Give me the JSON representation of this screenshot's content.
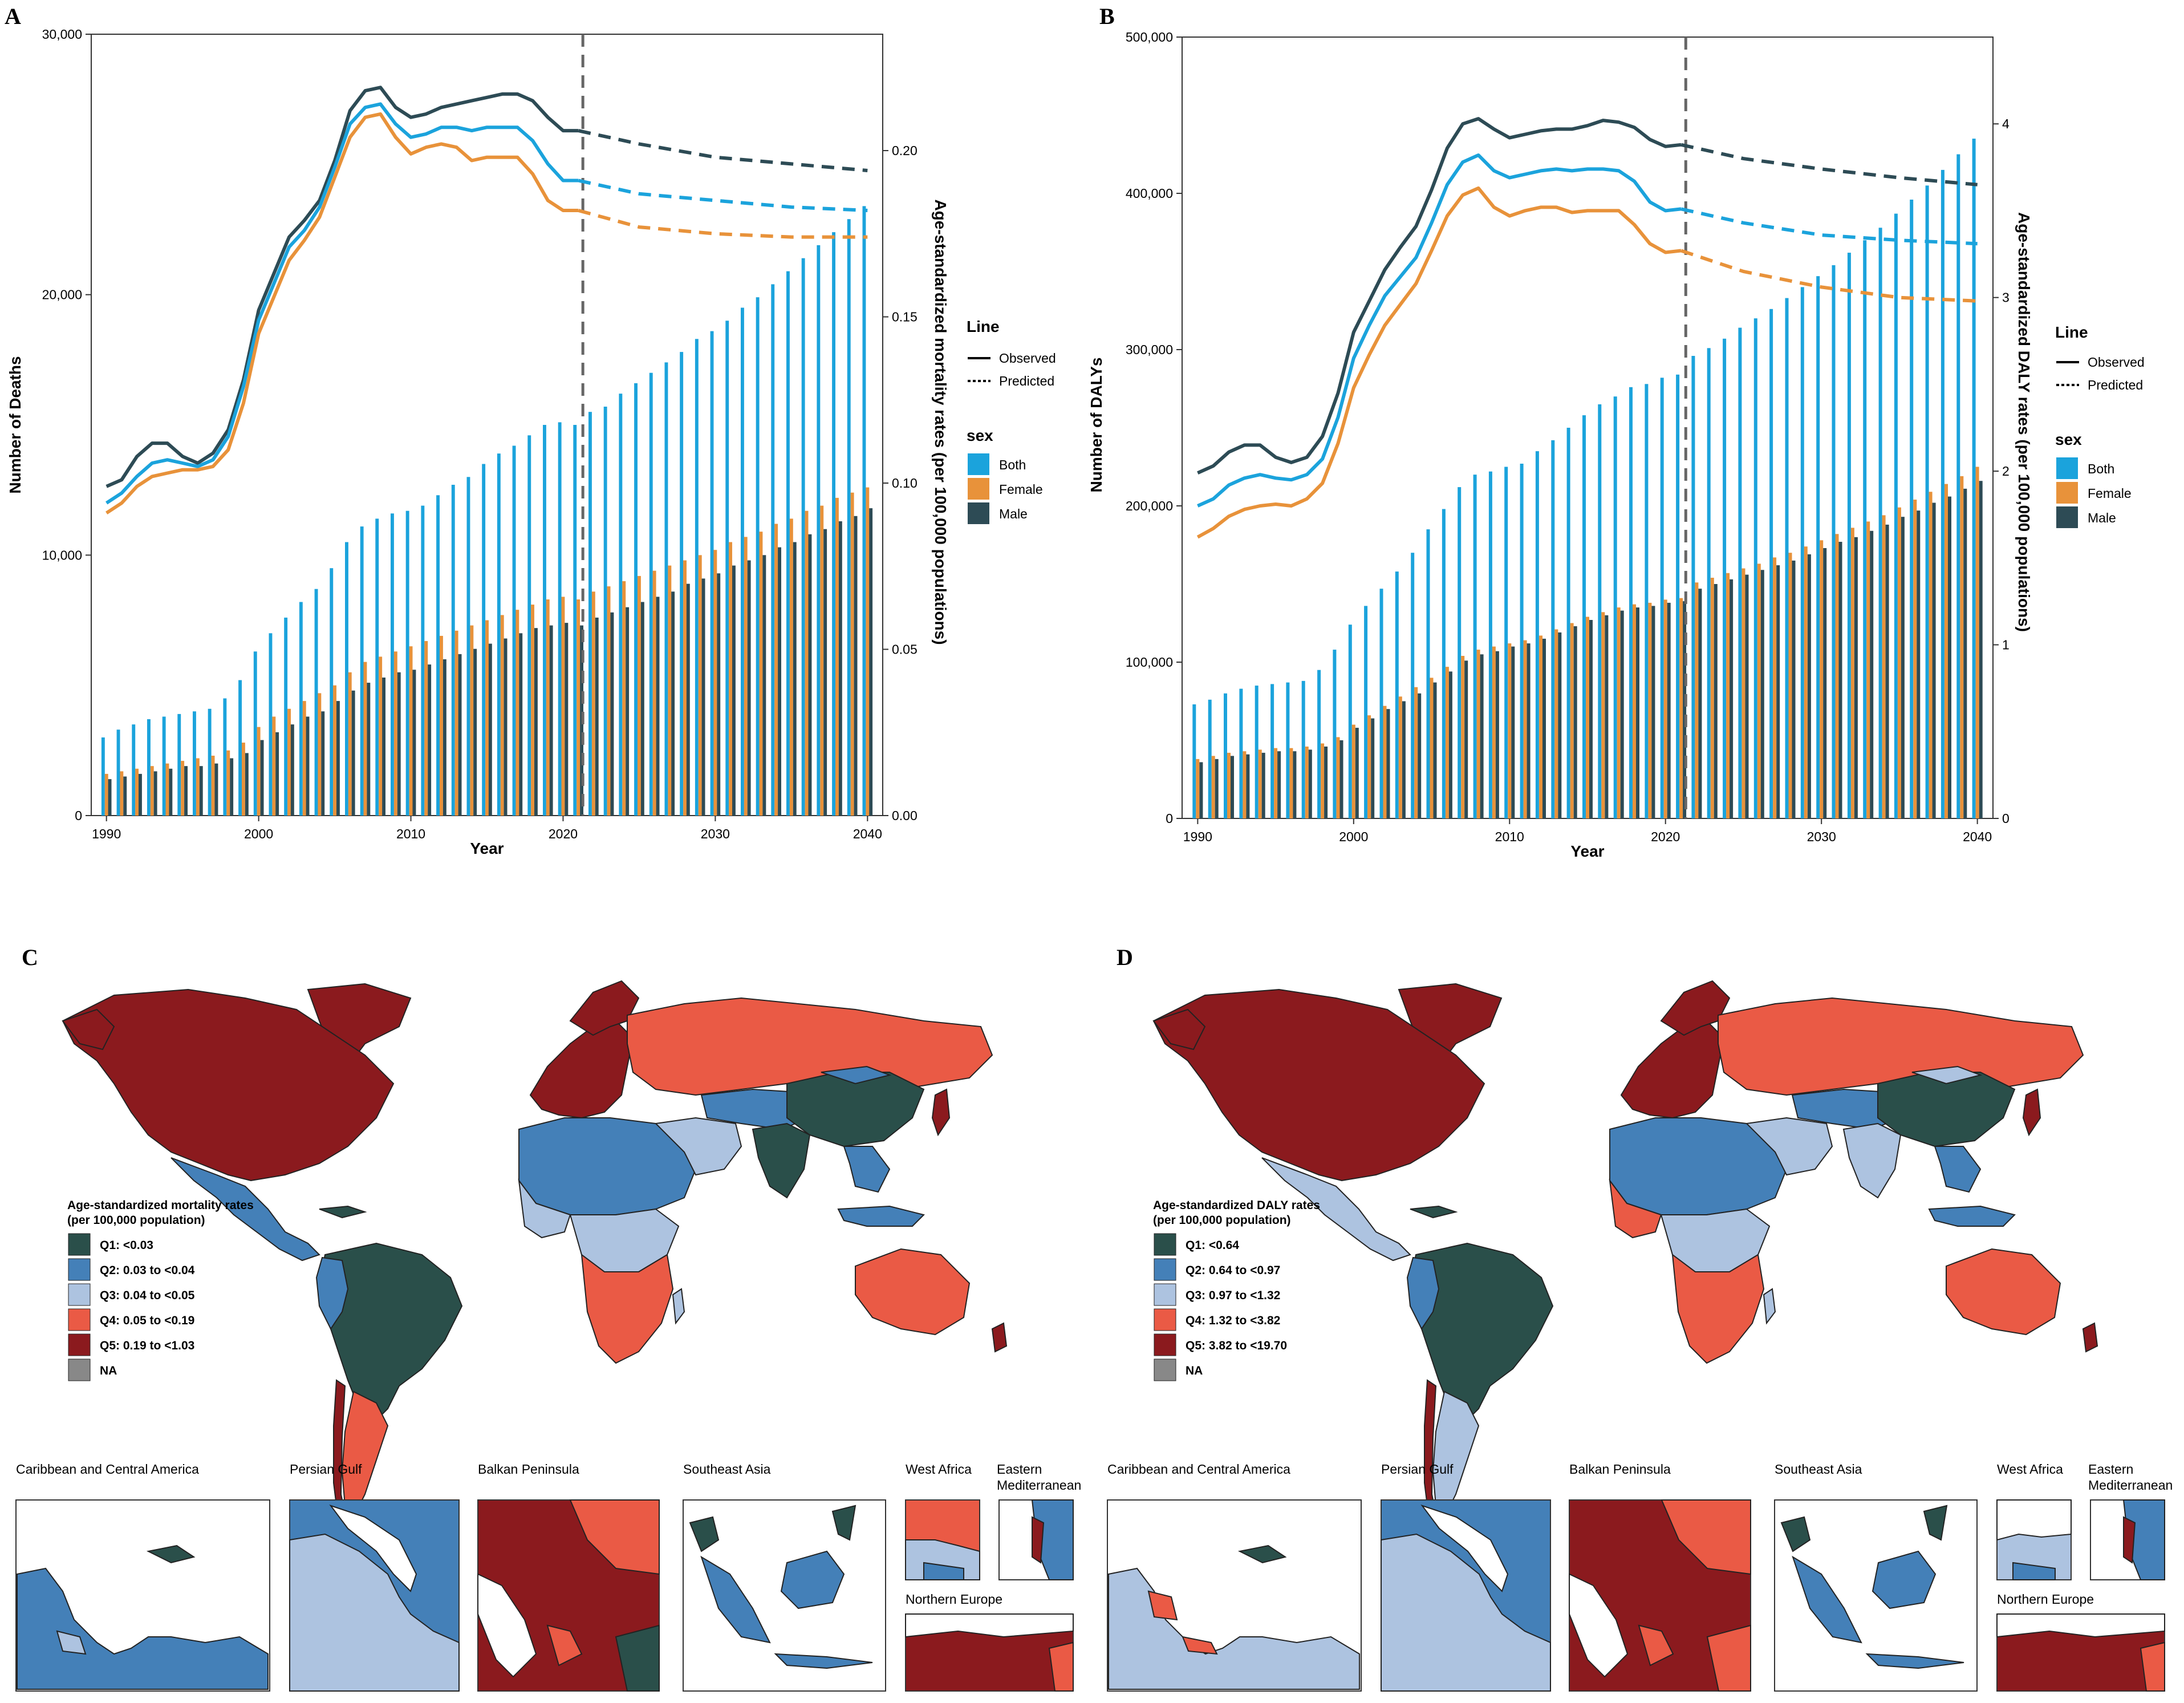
{
  "panels": {
    "A": {
      "letter": "A"
    },
    "B": {
      "letter": "B"
    },
    "C": {
      "letter": "C"
    },
    "D": {
      "letter": "D"
    }
  },
  "colors": {
    "Both": "#1ba3dc",
    "Female": "#e8923a",
    "Male": "#2d4b55",
    "Q1": "#2a4f4a",
    "Q2": "#4480b8",
    "Q3": "#adc3e0",
    "Q4": "#ea5a45",
    "Q5": "#8b1a1e",
    "NA": "#888888",
    "ocean": "#ffffff",
    "refline": "#666666"
  },
  "chart_data": [
    {
      "id": "A",
      "type": "bar+line",
      "xlabel": "Year",
      "ylabel_left": "Number of Deaths",
      "ylabel_right": "Age-standardized mortality rates (per 100,000 populations)",
      "xlim": [
        1989,
        2041
      ],
      "xticks": [
        1990,
        2000,
        2010,
        2020,
        2030,
        2040
      ],
      "ylim_left": [
        0,
        30000
      ],
      "yticks_left": [
        0,
        10000,
        20000,
        30000
      ],
      "yticks_left_labels": [
        "0",
        "10,000",
        "20,000",
        "30,000"
      ],
      "ylim_right": [
        0,
        0.235
      ],
      "yticks_right": [
        0,
        0.05,
        0.1,
        0.15,
        0.2
      ],
      "yticks_right_labels": [
        "0.00",
        "0.05",
        "0.10",
        "0.15",
        "0.20"
      ],
      "divider_year": 2021.3,
      "legend_line_title": "Line",
      "legend_line_items": [
        "Observed",
        "Predicted"
      ],
      "legend_sex_title": "sex",
      "legend_sex_items": [
        "Both",
        "Female",
        "Male"
      ],
      "bar_years": [
        1990,
        1991,
        1992,
        1993,
        1994,
        1995,
        1996,
        1997,
        1998,
        1999,
        2000,
        2001,
        2002,
        2003,
        2004,
        2005,
        2006,
        2007,
        2008,
        2009,
        2010,
        2011,
        2012,
        2013,
        2014,
        2015,
        2016,
        2017,
        2018,
        2019,
        2020,
        2021,
        2022,
        2023,
        2024,
        2025,
        2026,
        2027,
        2028,
        2029,
        2030,
        2031,
        2032,
        2033,
        2034,
        2035,
        2036,
        2037,
        2038,
        2039,
        2040
      ],
      "bars": {
        "Both": [
          3000,
          3300,
          3500,
          3700,
          3800,
          3900,
          4000,
          4100,
          4500,
          5200,
          6300,
          7000,
          7600,
          8200,
          8700,
          9500,
          10500,
          11100,
          11400,
          11600,
          11700,
          11900,
          12300,
          12700,
          13000,
          13500,
          13900,
          14200,
          14600,
          15000,
          15100,
          15000,
          15500,
          15700,
          16200,
          16600,
          17000,
          17400,
          17800,
          18300,
          18600,
          19000,
          19500,
          19900,
          20400,
          20900,
          21400,
          21900,
          22400,
          22900,
          23400
        ],
        "Female": [
          1600,
          1700,
          1800,
          1900,
          2000,
          2100,
          2200,
          2300,
          2500,
          2800,
          3400,
          3800,
          4100,
          4400,
          4700,
          5000,
          5500,
          5900,
          6100,
          6300,
          6500,
          6700,
          6900,
          7100,
          7300,
          7500,
          7700,
          7900,
          8100,
          8300,
          8400,
          8300,
          8600,
          8800,
          9000,
          9200,
          9400,
          9600,
          9800,
          10000,
          10200,
          10500,
          10700,
          10900,
          11200,
          11400,
          11700,
          11900,
          12200,
          12400,
          12600
        ],
        "Male": [
          1400,
          1500,
          1600,
          1700,
          1800,
          1900,
          1900,
          2000,
          2200,
          2400,
          2900,
          3200,
          3500,
          3800,
          4000,
          4400,
          4800,
          5100,
          5300,
          5500,
          5600,
          5800,
          6000,
          6200,
          6400,
          6600,
          6800,
          7000,
          7200,
          7300,
          7400,
          7300,
          7600,
          7800,
          8000,
          8200,
          8400,
          8600,
          8900,
          9100,
          9300,
          9600,
          9800,
          10000,
          10300,
          10500,
          10800,
          11000,
          11300,
          11500,
          11800
        ]
      },
      "lines": {
        "observed_years": [
          1990,
          1991,
          1992,
          1993,
          1994,
          1995,
          1996,
          1997,
          1998,
          1999,
          2000,
          2001,
          2002,
          2003,
          2004,
          2005,
          2006,
          2007,
          2008,
          2009,
          2010,
          2011,
          2012,
          2013,
          2014,
          2015,
          2016,
          2017,
          2018,
          2019,
          2020,
          2021
        ],
        "Male": [
          0.099,
          0.101,
          0.108,
          0.112,
          0.112,
          0.108,
          0.106,
          0.109,
          0.116,
          0.131,
          0.152,
          0.163,
          0.174,
          0.179,
          0.185,
          0.197,
          0.212,
          0.218,
          0.219,
          0.213,
          0.21,
          0.211,
          0.213,
          0.214,
          0.215,
          0.216,
          0.217,
          0.217,
          0.215,
          0.21,
          0.206,
          0.206
        ],
        "Both": [
          0.094,
          0.097,
          0.102,
          0.106,
          0.107,
          0.106,
          0.105,
          0.107,
          0.114,
          0.129,
          0.149,
          0.16,
          0.171,
          0.176,
          0.183,
          0.195,
          0.208,
          0.213,
          0.214,
          0.208,
          0.204,
          0.205,
          0.207,
          0.207,
          0.206,
          0.207,
          0.207,
          0.207,
          0.203,
          0.196,
          0.191,
          0.191
        ],
        "Female": [
          0.091,
          0.094,
          0.099,
          0.102,
          0.103,
          0.104,
          0.104,
          0.105,
          0.11,
          0.124,
          0.145,
          0.156,
          0.167,
          0.173,
          0.18,
          0.192,
          0.204,
          0.21,
          0.211,
          0.204,
          0.199,
          0.201,
          0.202,
          0.201,
          0.197,
          0.198,
          0.198,
          0.198,
          0.193,
          0.185,
          0.182,
          0.182
        ],
        "predicted_years": [
          2021,
          2025,
          2030,
          2035,
          2040
        ],
        "Male_pred": [
          0.206,
          0.202,
          0.198,
          0.196,
          0.194
        ],
        "Both_pred": [
          0.191,
          0.187,
          0.185,
          0.183,
          0.182
        ],
        "Female_pred": [
          0.182,
          0.177,
          0.175,
          0.174,
          0.174
        ]
      }
    },
    {
      "id": "B",
      "type": "bar+line",
      "xlabel": "Year",
      "ylabel_left": "Number of DALYs",
      "ylabel_right": "Age-standardized DALY rates (per 100,000 populations)",
      "xlim": [
        1989,
        2041
      ],
      "xticks": [
        1990,
        2000,
        2010,
        2020,
        2030,
        2040
      ],
      "ylim_left": [
        0,
        500000
      ],
      "yticks_left": [
        0,
        100000,
        200000,
        300000,
        400000,
        500000
      ],
      "yticks_left_labels": [
        "0",
        "100,000",
        "200,000",
        "300,000",
        "400,000",
        "500,000"
      ],
      "ylim_right": [
        0,
        4.5
      ],
      "yticks_right": [
        0,
        1,
        2,
        3,
        4
      ],
      "yticks_right_labels": [
        "0",
        "1",
        "2",
        "3",
        "4"
      ],
      "divider_year": 2021.3,
      "legend_line_title": "Line",
      "legend_line_items": [
        "Observed",
        "Predicted"
      ],
      "legend_sex_title": "sex",
      "legend_sex_items": [
        "Both",
        "Female",
        "Male"
      ],
      "bar_years": [
        1990,
        1991,
        1992,
        1993,
        1994,
        1995,
        1996,
        1997,
        1998,
        1999,
        2000,
        2001,
        2002,
        2003,
        2004,
        2005,
        2006,
        2007,
        2008,
        2009,
        2010,
        2011,
        2012,
        2013,
        2014,
        2015,
        2016,
        2017,
        2018,
        2019,
        2020,
        2021
      ],
      "bars": {
        "Both": [
          73000,
          76000,
          80000,
          83000,
          85000,
          86000,
          87000,
          88000,
          95000,
          108000,
          124000,
          136000,
          147000,
          158000,
          170000,
          185000,
          198000,
          212000,
          220000,
          222000,
          225000,
          227000,
          235000,
          242000,
          250000,
          258000,
          265000,
          270000,
          276000,
          278000,
          282000,
          284000
        ],
        "Female": [
          38000,
          40000,
          42000,
          43000,
          44000,
          45000,
          45000,
          46000,
          48000,
          52000,
          60000,
          66000,
          72000,
          78000,
          84000,
          90000,
          97000,
          104000,
          108000,
          110000,
          112000,
          114000,
          117000,
          121000,
          125000,
          129000,
          132000,
          135000,
          137000,
          138000,
          140000,
          141000
        ],
        "Male": [
          36000,
          38000,
          40000,
          41000,
          42000,
          43000,
          43000,
          44000,
          46000,
          50000,
          58000,
          64000,
          70000,
          75000,
          80000,
          87000,
          94000,
          101000,
          105000,
          107000,
          110000,
          112000,
          115000,
          119000,
          123000,
          127000,
          130000,
          133000,
          135000,
          136000,
          138000,
          139000
        ]
      },
      "bars_pred": {
        "years": [
          2022,
          2023,
          2024,
          2025,
          2026,
          2027,
          2028,
          2029,
          2030,
          2031,
          2032,
          2033,
          2034,
          2035,
          2036,
          2037,
          2038,
          2039,
          2040
        ],
        "Both": [
          296000,
          301000,
          307000,
          314000,
          320000,
          326000,
          333000,
          340000,
          347000,
          354000,
          362000,
          370000,
          378000,
          387000,
          396000,
          405000,
          415000,
          425000,
          435000
        ],
        "Female": [
          151000,
          154000,
          157000,
          160000,
          163000,
          167000,
          170000,
          174000,
          178000,
          182000,
          186000,
          190000,
          194000,
          199000,
          204000,
          209000,
          214000,
          219000,
          225000
        ],
        "Male": [
          147000,
          150000,
          153000,
          156000,
          159000,
          162000,
          165000,
          169000,
          173000,
          177000,
          180000,
          184000,
          188000,
          193000,
          197000,
          202000,
          206000,
          211000,
          216000
        ]
      },
      "lines": {
        "observed_years": [
          1990,
          1991,
          1992,
          1993,
          1994,
          1995,
          1996,
          1997,
          1998,
          1999,
          2000,
          2001,
          2002,
          2003,
          2004,
          2005,
          2006,
          2007,
          2008,
          2009,
          2010,
          2011,
          2012,
          2013,
          2014,
          2015,
          2016,
          2017,
          2018,
          2019,
          2020,
          2021
        ],
        "Male": [
          1.99,
          2.03,
          2.11,
          2.15,
          2.15,
          2.08,
          2.05,
          2.08,
          2.2,
          2.45,
          2.8,
          2.98,
          3.16,
          3.29,
          3.41,
          3.62,
          3.86,
          4.0,
          4.03,
          3.97,
          3.92,
          3.94,
          3.96,
          3.97,
          3.97,
          3.99,
          4.02,
          4.01,
          3.98,
          3.91,
          3.87,
          3.88
        ],
        "Both": [
          1.8,
          1.84,
          1.92,
          1.96,
          1.98,
          1.96,
          1.95,
          1.98,
          2.07,
          2.31,
          2.65,
          2.84,
          3.01,
          3.12,
          3.23,
          3.43,
          3.65,
          3.78,
          3.82,
          3.73,
          3.69,
          3.71,
          3.73,
          3.74,
          3.73,
          3.74,
          3.74,
          3.73,
          3.67,
          3.55,
          3.5,
          3.51
        ],
        "Female": [
          1.62,
          1.67,
          1.74,
          1.78,
          1.8,
          1.81,
          1.8,
          1.84,
          1.93,
          2.16,
          2.48,
          2.67,
          2.84,
          2.96,
          3.08,
          3.27,
          3.47,
          3.59,
          3.63,
          3.52,
          3.47,
          3.5,
          3.52,
          3.52,
          3.49,
          3.5,
          3.5,
          3.5,
          3.42,
          3.31,
          3.26,
          3.27
        ],
        "predicted_years": [
          2021,
          2025,
          2030,
          2035,
          2040
        ],
        "Male_pred": [
          3.88,
          3.8,
          3.74,
          3.69,
          3.65
        ],
        "Both_pred": [
          3.51,
          3.43,
          3.36,
          3.33,
          3.31
        ],
        "Female_pred": [
          3.27,
          3.15,
          3.06,
          3.0,
          2.98
        ]
      }
    }
  ],
  "map_C": {
    "legend_title_1": "Age-standardized mortality rates",
    "legend_title_2": "(per 100,000 population)",
    "items": [
      "Q1: <0.03",
      "Q2: 0.03 to <0.04",
      "Q3: 0.04 to <0.05",
      "Q4: 0.05 to <0.19",
      "Q5: 0.19 to <1.03",
      "NA"
    ]
  },
  "map_D": {
    "legend_title_1": "Age-standardized DALY rates",
    "legend_title_2": "(per 100,000 population)",
    "items": [
      "Q1: <0.64",
      "Q2: 0.64 to <0.97",
      "Q3: 0.97 to <1.32",
      "Q4: 1.32 to <3.82",
      "Q5: 3.82 to <19.70",
      "NA"
    ]
  },
  "insets": {
    "caribbean": "Caribbean and Central America",
    "persian_gulf": "Persian Gulf",
    "balkan": "Balkan Peninsula",
    "se_asia": "Southeast Asia",
    "west_africa": "West Africa",
    "east_med_1": "Eastern",
    "east_med_2": "Mediterranean",
    "north_europe": "Northern Europe"
  }
}
